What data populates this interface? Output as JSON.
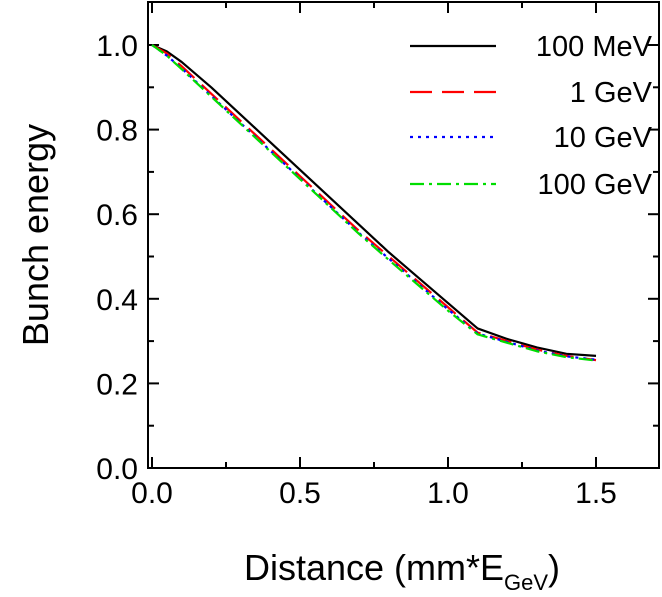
{
  "chart_data": {
    "type": "line",
    "title": "",
    "xlabel": "Distance (mm*E",
    "xlabel_sub": "GeV",
    "xlabel_end": ")",
    "ylabel": "Bunch energy",
    "xlim": [
      0.0,
      1.6
    ],
    "ylim": [
      0.0,
      1.1
    ],
    "x_ticks": [
      "0.0",
      "0.5",
      "1.0",
      "1.5"
    ],
    "y_ticks": [
      "0.0",
      "0.2",
      "0.4",
      "0.6",
      "0.8",
      "1.0"
    ],
    "grid": false,
    "legend_position": "top-right",
    "series": [
      {
        "name": "100 MeV",
        "color": "#000000",
        "dash": "solid",
        "x": [
          0.0,
          0.05,
          0.1,
          0.2,
          0.3,
          0.4,
          0.5,
          0.6,
          0.7,
          0.8,
          0.9,
          1.0,
          1.1,
          1.2,
          1.25,
          1.3,
          1.4,
          1.5
        ],
        "y": [
          1.0,
          0.985,
          0.96,
          0.9,
          0.835,
          0.77,
          0.705,
          0.64,
          0.575,
          0.51,
          0.45,
          0.39,
          0.33,
          0.305,
          0.295,
          0.285,
          0.27,
          0.265
        ]
      },
      {
        "name": "1 GeV",
        "color": "#ff0000",
        "dash": "dashed",
        "x": [
          0.0,
          0.05,
          0.1,
          0.2,
          0.3,
          0.4,
          0.5,
          0.6,
          0.7,
          0.8,
          0.9,
          1.0,
          1.1,
          1.2,
          1.25,
          1.3,
          1.4,
          1.5
        ],
        "y": [
          1.0,
          0.98,
          0.95,
          0.885,
          0.82,
          0.755,
          0.69,
          0.625,
          0.56,
          0.5,
          0.44,
          0.38,
          0.32,
          0.3,
          0.29,
          0.28,
          0.265,
          0.255
        ]
      },
      {
        "name": "10 GeV",
        "color": "#0000ff",
        "dash": "dotted",
        "x": [
          0.0,
          0.05,
          0.1,
          0.2,
          0.3,
          0.4,
          0.5,
          0.6,
          0.7,
          0.8,
          0.9,
          1.0,
          1.1,
          1.2,
          1.25,
          1.3,
          1.4,
          1.5
        ],
        "y": [
          1.0,
          0.975,
          0.945,
          0.88,
          0.815,
          0.75,
          0.685,
          0.62,
          0.555,
          0.495,
          0.435,
          0.375,
          0.318,
          0.298,
          0.288,
          0.278,
          0.264,
          0.256
        ]
      },
      {
        "name": "100 GeV",
        "color": "#00dd00",
        "dash": "dashdot",
        "x": [
          0.0,
          0.05,
          0.1,
          0.2,
          0.3,
          0.4,
          0.5,
          0.6,
          0.7,
          0.8,
          0.9,
          1.0,
          1.1,
          1.2,
          1.25,
          1.3,
          1.4,
          1.5
        ],
        "y": [
          1.0,
          0.975,
          0.943,
          0.878,
          0.813,
          0.748,
          0.683,
          0.618,
          0.553,
          0.492,
          0.432,
          0.372,
          0.316,
          0.296,
          0.286,
          0.276,
          0.262,
          0.254
        ]
      }
    ]
  }
}
